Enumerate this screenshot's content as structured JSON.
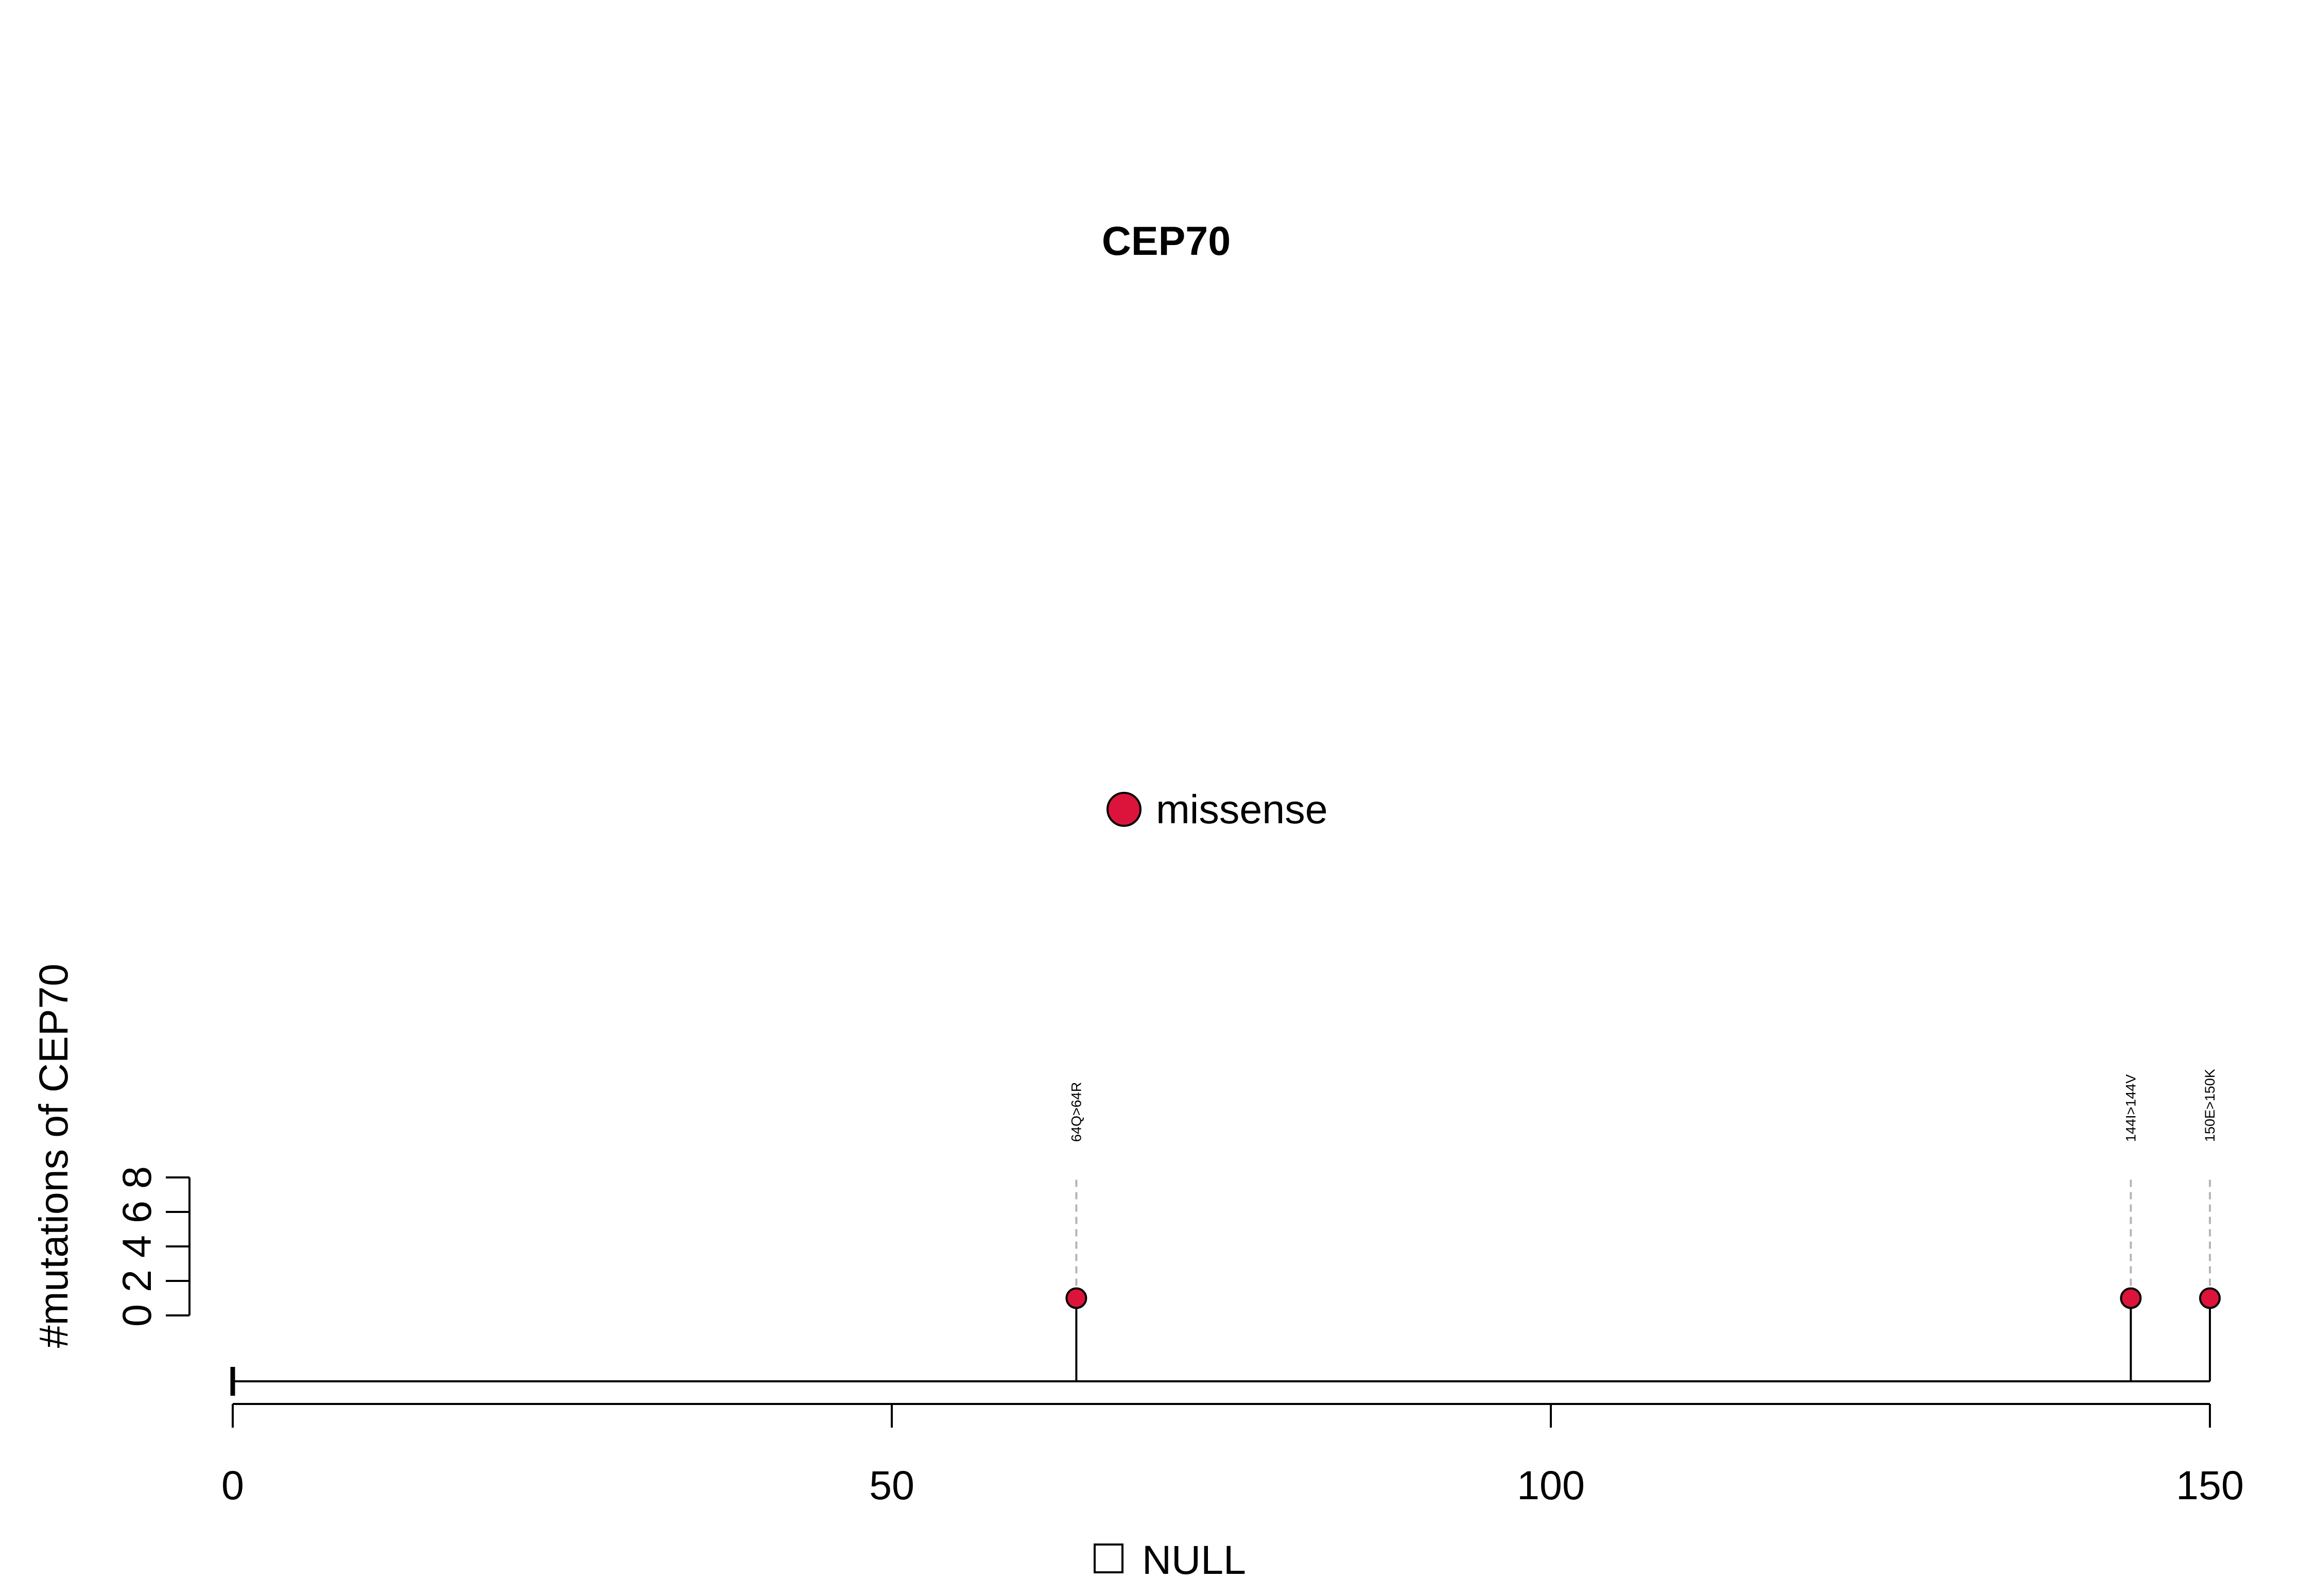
{
  "chart_data": {
    "type": "lollipop",
    "title": "CEP70",
    "ylabel": "#mutations of CEP70",
    "xlim": [
      0,
      150
    ],
    "x_ticks": [
      0,
      50,
      100,
      150
    ],
    "ylim": [
      0,
      8
    ],
    "y_ticks": [
      0,
      2,
      4,
      6,
      8
    ],
    "protein_length": 150,
    "legend": [
      {
        "label": "missense",
        "color": "#dc143c"
      }
    ],
    "domain_legend": [
      {
        "label": "NULL"
      }
    ],
    "mutations": [
      {
        "position": 64,
        "count": 1,
        "label": "64Q>64R",
        "type": "missense",
        "color": "#dc143c"
      },
      {
        "position": 144,
        "count": 1,
        "label": "144I>144V",
        "type": "missense",
        "color": "#dc143c"
      },
      {
        "position": 150,
        "count": 1,
        "label": "150E>150K",
        "type": "missense",
        "color": "#dc143c"
      }
    ]
  }
}
